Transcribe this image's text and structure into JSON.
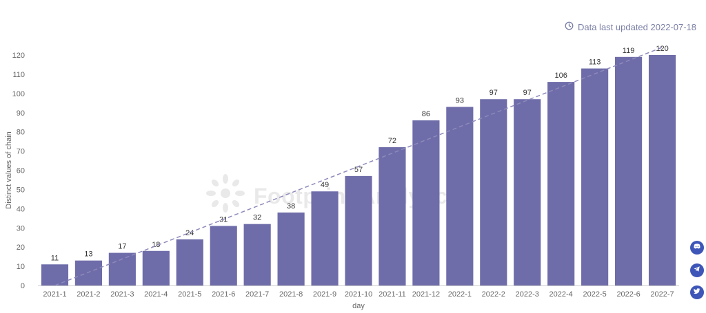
{
  "header": {
    "updated_text": "Data last updated 2022-07-18",
    "clock_icon": "clock-icon"
  },
  "watermark": {
    "text": "Footprint Analytics",
    "icon": "sun-logo-icon"
  },
  "side_buttons": [
    {
      "icon": "discord-icon"
    },
    {
      "icon": "telegram-icon"
    },
    {
      "icon": "twitter-icon"
    }
  ],
  "colors": {
    "bar": "#6e6ca9",
    "trend": "#8e8aba",
    "axis_text": "#666666",
    "label_text": "#333333",
    "side_button": "#3e56b8"
  },
  "chart_data": {
    "type": "bar",
    "categories": [
      "2021-1",
      "2021-2",
      "2021-3",
      "2021-4",
      "2021-5",
      "2021-6",
      "2021-7",
      "2021-8",
      "2021-9",
      "2021-10",
      "2021-11",
      "2021-12",
      "2022-1",
      "2022-2",
      "2022-3",
      "2022-4",
      "2022-5",
      "2022-6",
      "2022-7"
    ],
    "values": [
      11,
      13,
      17,
      18,
      24,
      31,
      32,
      38,
      49,
      57,
      72,
      86,
      93,
      97,
      97,
      106,
      113,
      119,
      120
    ],
    "xlabel": "day",
    "ylabel": "Distinct values of chain",
    "ylim": [
      0,
      120
    ],
    "yticks": [
      0,
      10,
      20,
      30,
      40,
      50,
      60,
      70,
      80,
      90,
      100,
      110,
      120
    ],
    "trendline": {
      "style": "dashed",
      "from": 0,
      "to": 124
    },
    "data_labels": true,
    "grid": false
  }
}
